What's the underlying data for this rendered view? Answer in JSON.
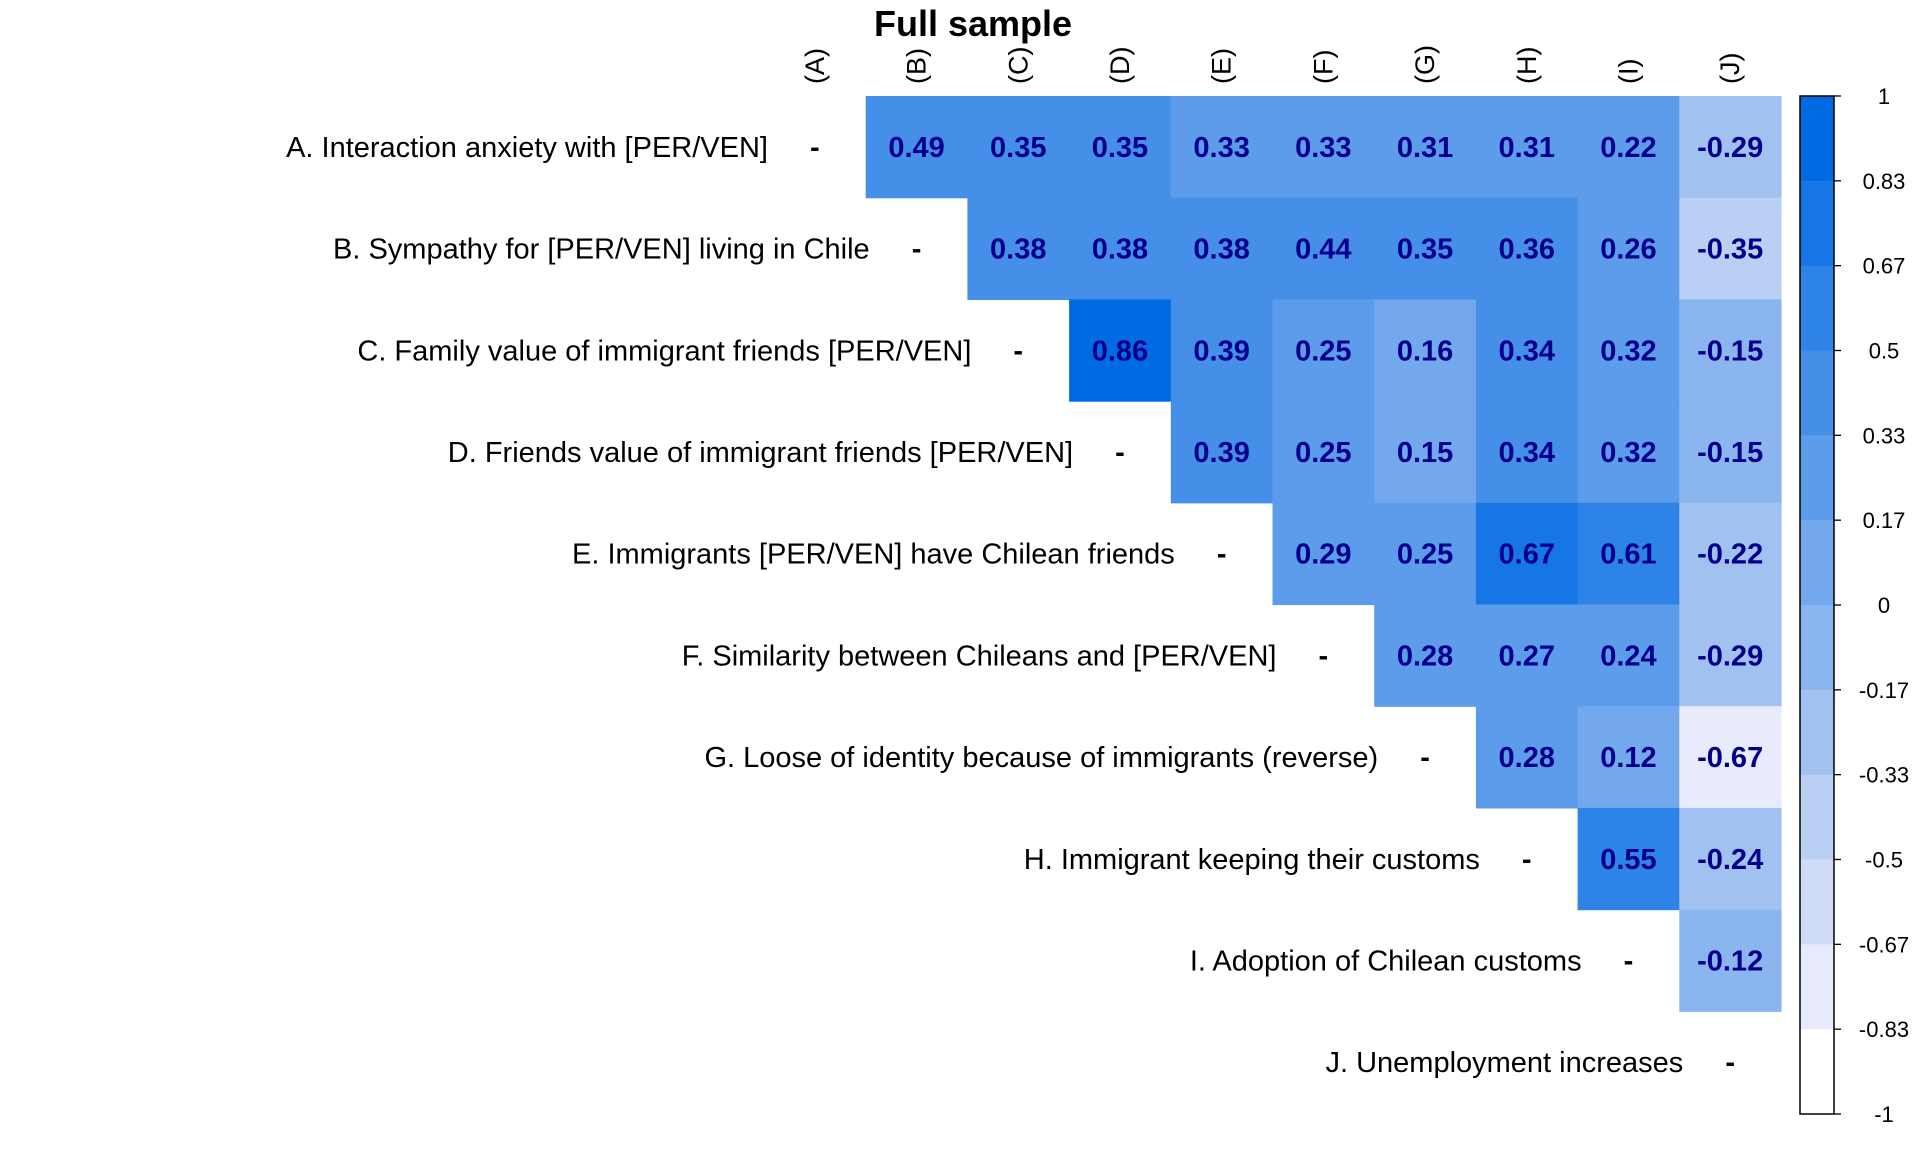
{
  "chart_data": {
    "type": "heatmap",
    "title": "Full sample",
    "row_labels": [
      "A. Interaction anxiety with [PER/VEN]",
      "B. Sympathy for [PER/VEN] living in Chile",
      "C. Family value of immigrant friends [PER/VEN]",
      "D. Friends value of immigrant friends [PER/VEN]",
      "E. Immigrants [PER/VEN] have Chilean friends",
      "F. Similarity between Chileans and [PER/VEN]",
      "G. Loose of identity because of immigrants (reverse)",
      "H. Immigrant keeping their customs",
      "I. Adoption of Chilean customs",
      "J. Unemployment increases"
    ],
    "col_labels": [
      "(A)",
      "(B)",
      "(C)",
      "(D)",
      "(E)",
      "(F)",
      "(G)",
      "(H)",
      "(I)",
      "(J)"
    ],
    "diagonal_text": "-",
    "values": [
      [
        null,
        0.49,
        0.35,
        0.35,
        0.33,
        0.33,
        0.31,
        0.31,
        0.22,
        -0.29
      ],
      [
        null,
        null,
        0.38,
        0.38,
        0.38,
        0.44,
        0.35,
        0.36,
        0.26,
        -0.35
      ],
      [
        null,
        null,
        null,
        0.86,
        0.39,
        0.25,
        0.16,
        0.34,
        0.32,
        -0.15
      ],
      [
        null,
        null,
        null,
        null,
        0.39,
        0.25,
        0.15,
        0.34,
        0.32,
        -0.15
      ],
      [
        null,
        null,
        null,
        null,
        null,
        0.29,
        0.25,
        0.67,
        0.61,
        -0.22
      ],
      [
        null,
        null,
        null,
        null,
        null,
        null,
        0.28,
        0.27,
        0.24,
        -0.29
      ],
      [
        null,
        null,
        null,
        null,
        null,
        null,
        null,
        0.28,
        0.12,
        -0.67
      ],
      [
        null,
        null,
        null,
        null,
        null,
        null,
        null,
        null,
        0.55,
        -0.24
      ],
      [
        null,
        null,
        null,
        null,
        null,
        null,
        null,
        null,
        null,
        -0.12
      ],
      [
        null,
        null,
        null,
        null,
        null,
        null,
        null,
        null,
        null,
        null
      ]
    ],
    "colorbar": {
      "range": [
        -1,
        1
      ],
      "tick_labels": [
        "1",
        "0.83",
        "0.67",
        "0.5",
        "0.33",
        "0.17",
        "0",
        "-0.17",
        "-0.33",
        "-0.5",
        "-0.67",
        "-0.83",
        "-1"
      ],
      "colors": [
        "#006ae3",
        "#1776e6",
        "#2e83e6",
        "#458fe8",
        "#5c9cea",
        "#73a8ec",
        "#8ab5ee",
        "#a1c2f1",
        "#b9cff4",
        "#d0dcf7",
        "#e8ebfb",
        "#ffffff"
      ]
    }
  }
}
